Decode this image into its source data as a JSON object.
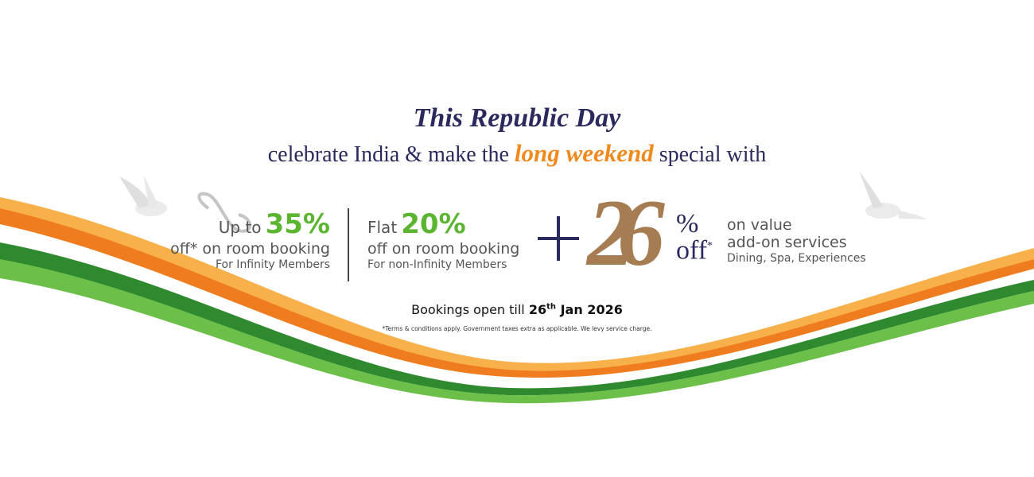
{
  "headline": "This Republic Day",
  "subheadline": {
    "before": "celebrate India & make the",
    "highlight": "long weekend",
    "after": "special with"
  },
  "offers": [
    {
      "prefix": "Up to",
      "value": "35%",
      "line2": "off* on room booking",
      "line3": "For Infinity Members",
      "icon": "infinity-icon"
    },
    {
      "prefix": "Flat",
      "value": "20%",
      "line2": "off on room booking",
      "line3": "For non-Infinity Members"
    },
    {
      "value": "26",
      "pct": "%",
      "off": "off",
      "asterisk": "*",
      "line1": "on value",
      "line2": "add-on services",
      "line3": "Dining, Spa, Experiences"
    }
  ],
  "deadline": {
    "prefix": "Bookings open till",
    "day": "26",
    "suffix": "th",
    "rest": "Jan 2026"
  },
  "terms": "*Terms & conditions apply. Government taxes extra as applicable. We levy service charge.",
  "colors": {
    "navy": "#2b2a5e",
    "saffron": "#f0891e",
    "green": "#5cb531",
    "ribbon_green": "#3f9a3a"
  }
}
